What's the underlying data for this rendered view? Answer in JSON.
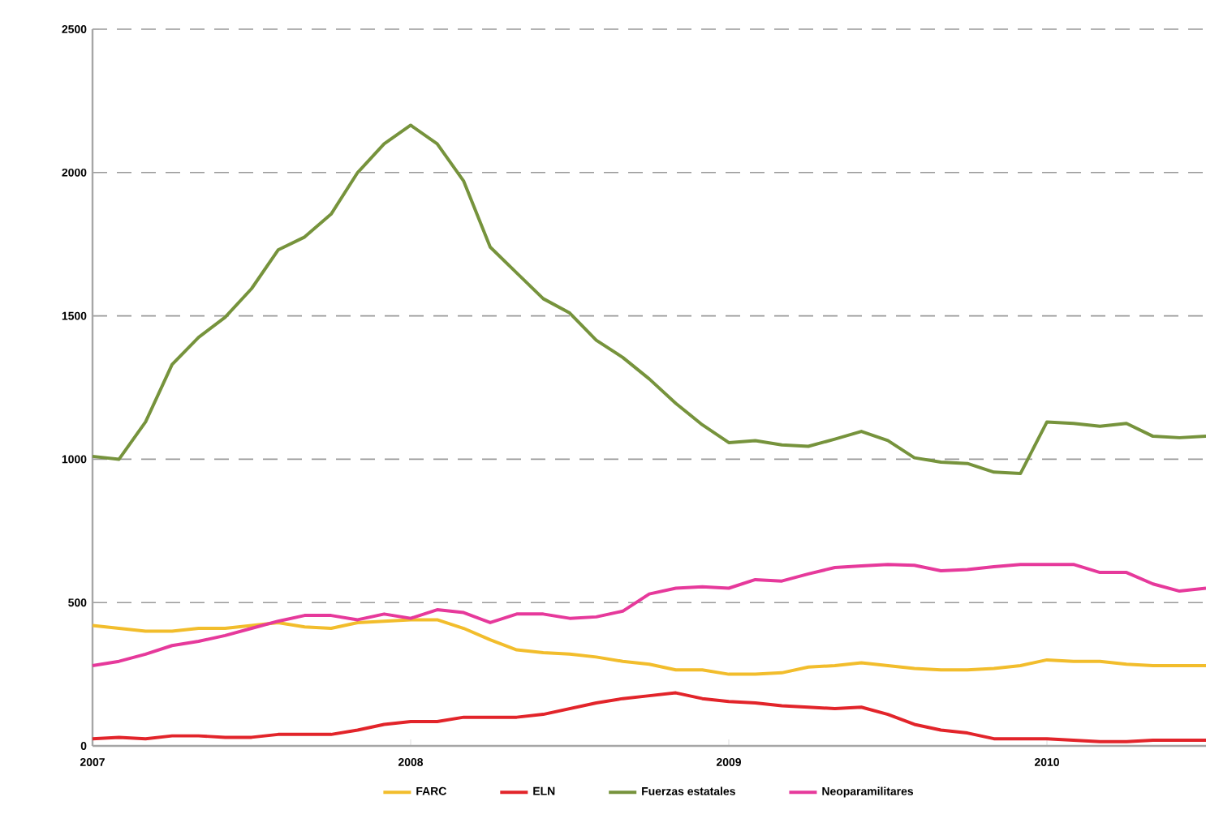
{
  "chart_data": {
    "type": "line",
    "x": [
      "2007-01",
      "2007-02",
      "2007-03",
      "2007-04",
      "2007-05",
      "2007-06",
      "2007-07",
      "2007-08",
      "2007-09",
      "2007-10",
      "2007-11",
      "2007-12",
      "2008-01",
      "2008-02",
      "2008-03",
      "2008-04",
      "2008-05",
      "2008-06",
      "2008-07",
      "2008-08",
      "2008-09",
      "2008-10",
      "2008-11",
      "2008-12",
      "2009-01",
      "2009-02",
      "2009-03",
      "2009-04",
      "2009-05",
      "2009-06",
      "2009-07",
      "2009-08",
      "2009-09",
      "2009-10",
      "2009-11",
      "2009-12",
      "2010-01",
      "2010-02",
      "2010-03",
      "2010-04",
      "2010-05",
      "2010-06",
      "2010-07"
    ],
    "series": [
      {
        "name": "FARC",
        "color": "#f2bd2c",
        "values": [
          420,
          410,
          400,
          400,
          410,
          410,
          420,
          430,
          415,
          410,
          430,
          435,
          440,
          440,
          410,
          370,
          335,
          325,
          320,
          310,
          295,
          285,
          265,
          265,
          250,
          250,
          255,
          275,
          280,
          290,
          280,
          270,
          265,
          265,
          270,
          280,
          300,
          295,
          295,
          285,
          280,
          280,
          280
        ]
      },
      {
        "name": "ELN",
        "color": "#e2242a",
        "values": [
          25,
          30,
          25,
          35,
          35,
          30,
          30,
          40,
          40,
          40,
          55,
          75,
          85,
          85,
          100,
          100,
          100,
          110,
          130,
          150,
          165,
          175,
          185,
          165,
          155,
          150,
          140,
          135,
          130,
          135,
          110,
          75,
          55,
          45,
          25,
          25,
          25,
          20,
          15,
          15,
          20,
          20,
          20
        ]
      },
      {
        "name": "Fuerzas estatales",
        "color": "#76933c",
        "values": [
          1010,
          1000,
          1130,
          1330,
          1425,
          1495,
          1595,
          1730,
          1775,
          1855,
          2000,
          2100,
          2165,
          2100,
          1970,
          1740,
          1650,
          1560,
          1510,
          1415,
          1355,
          1280,
          1195,
          1120,
          1058,
          1065,
          1050,
          1045,
          1070,
          1097,
          1065,
          1005,
          990,
          985,
          955,
          950,
          1130,
          1125,
          1115,
          1125,
          1080,
          1075,
          1080
        ]
      },
      {
        "name": "Neoparamilitares",
        "color": "#e6399b",
        "values": [
          280,
          295,
          320,
          350,
          365,
          385,
          410,
          435,
          455,
          455,
          440,
          460,
          445,
          475,
          465,
          430,
          460,
          460,
          445,
          450,
          470,
          530,
          550,
          555,
          550,
          580,
          575,
          600,
          622,
          628,
          633,
          630,
          611,
          615,
          625,
          633,
          633,
          633,
          605,
          605,
          565,
          540,
          550
        ]
      }
    ],
    "xlim": [
      "2007-01",
      "2010-07"
    ],
    "xticks": [
      {
        "value": "2007",
        "label": "2007"
      },
      {
        "value": "2008",
        "label": "2008"
      },
      {
        "value": "2009",
        "label": "2009"
      },
      {
        "value": "2010",
        "label": "2010"
      }
    ],
    "ylim": [
      0,
      2500
    ],
    "yticks": [
      0,
      500,
      1000,
      1500,
      2000,
      2500
    ],
    "grid": "y",
    "legend": "bottom",
    "line_style": "solid",
    "marker": "none"
  }
}
